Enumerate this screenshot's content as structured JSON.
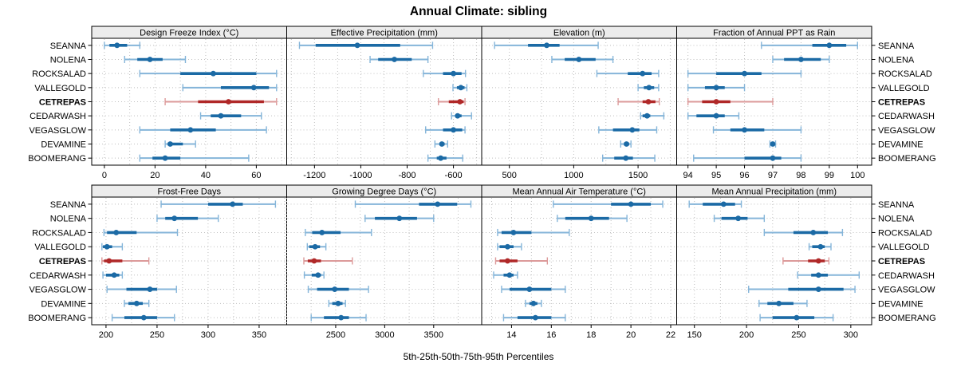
{
  "title": "Annual Climate: sibling",
  "caption": "5th-25th-50th-75th-95th Percentiles",
  "highlight_category": "CETREPAS",
  "colors": {
    "point_blue": "#1b6aa5",
    "band_blue": "#85b5d9",
    "point_red": "#b02828",
    "band_red": "#dc9a9a",
    "strip_bg": "#ececec",
    "grid": "#bfbfbf",
    "border": "#000000"
  },
  "chart_data": {
    "type": "dotplot-percentile-intervals",
    "percentiles_shown": [
      5,
      25,
      50,
      75,
      95
    ],
    "layout": "2 rows x 4 columns of panels, shared category axis",
    "categories": [
      "SEANNA",
      "NOLENA",
      "ROCKSALAD",
      "VALLEGOLD",
      "CETREPAS",
      "CEDARWASH",
      "VEGASGLOW",
      "DEVAMINE",
      "BOOMERANG"
    ],
    "panels": [
      {
        "title": "Design Freeze Index (°C)",
        "grid_row": 0,
        "grid_col": 0,
        "ticks": [
          0,
          20,
          40,
          60
        ],
        "xlim": [
          -5,
          72
        ],
        "values": [
          [
            0,
            2,
            5,
            9,
            14
          ],
          [
            8,
            13,
            18,
            23,
            32
          ],
          [
            14,
            30,
            43,
            60,
            68
          ],
          [
            31,
            46,
            59,
            65,
            68
          ],
          [
            24,
            37,
            49,
            63,
            68
          ],
          [
            38,
            42,
            46,
            54,
            62
          ],
          [
            14,
            26,
            34,
            44,
            64
          ],
          [
            24,
            25,
            26,
            31,
            36
          ],
          [
            14,
            19,
            24,
            30,
            57
          ]
        ]
      },
      {
        "title": "Effective Precipitation (mm)",
        "grid_row": 0,
        "grid_col": 1,
        "ticks": [
          -1200,
          -1000,
          -800,
          -600
        ],
        "xlim": [
          -1320,
          -478
        ],
        "values": [
          [
            -1265,
            -1195,
            -1015,
            -830,
            -690
          ],
          [
            -960,
            -925,
            -855,
            -780,
            -710
          ],
          [
            -730,
            -645,
            -600,
            -565,
            -548
          ],
          [
            -602,
            -585,
            -568,
            -552,
            -542
          ],
          [
            -665,
            -620,
            -572,
            -556,
            -550
          ],
          [
            -608,
            -592,
            -582,
            -565,
            -522
          ],
          [
            -720,
            -645,
            -600,
            -562,
            -550
          ],
          [
            -680,
            -660,
            -650,
            -638,
            -625
          ],
          [
            -710,
            -672,
            -655,
            -630,
            -560
          ]
        ]
      },
      {
        "title": "Elevation (m)",
        "grid_row": 0,
        "grid_col": 2,
        "ticks": [
          500,
          1000,
          1500
        ],
        "xlim": [
          285,
          1800
        ],
        "values": [
          [
            385,
            645,
            790,
            890,
            1190
          ],
          [
            830,
            930,
            1040,
            1170,
            1305
          ],
          [
            1180,
            1420,
            1535,
            1605,
            1660
          ],
          [
            1500,
            1545,
            1585,
            1625,
            1660
          ],
          [
            1345,
            1535,
            1580,
            1635,
            1665
          ],
          [
            1520,
            1535,
            1570,
            1595,
            1700
          ],
          [
            1195,
            1305,
            1455,
            1510,
            1645
          ],
          [
            1365,
            1390,
            1410,
            1430,
            1445
          ],
          [
            1225,
            1315,
            1405,
            1460,
            1630
          ]
        ]
      },
      {
        "title": "Fraction of Annual PPT as Rain",
        "grid_row": 0,
        "grid_col": 3,
        "ticks": [
          94,
          95,
          96,
          97,
          98,
          99,
          100
        ],
        "xlim": [
          93.6,
          100.5
        ],
        "values": [
          [
            96.6,
            98.4,
            99,
            99.6,
            100
          ],
          [
            97,
            97.4,
            98,
            98.7,
            99
          ],
          [
            94,
            95,
            96,
            96.6,
            98
          ],
          [
            94,
            94.6,
            95,
            95.3,
            96
          ],
          [
            94,
            94.5,
            95,
            95.5,
            97
          ],
          [
            94,
            94.3,
            95,
            95.3,
            95.8
          ],
          [
            94.9,
            95.5,
            96,
            96.7,
            98
          ],
          [
            96.9,
            96.95,
            97,
            97.05,
            97.1
          ],
          [
            94.2,
            96,
            97,
            97.3,
            98
          ]
        ]
      },
      {
        "title": "Frost-Free Days",
        "grid_row": 1,
        "grid_col": 0,
        "ticks": [
          200,
          250,
          300,
          350
        ],
        "xlim": [
          186,
          377
        ],
        "values": [
          [
            254,
            300,
            324,
            334,
            366
          ],
          [
            250,
            258,
            267,
            290,
            310
          ],
          [
            198,
            201,
            210,
            230,
            270
          ],
          [
            196,
            197,
            201,
            206,
            216
          ],
          [
            196,
            198,
            203,
            216,
            242
          ],
          [
            197,
            200,
            208,
            213,
            216
          ],
          [
            201,
            220,
            243,
            250,
            269
          ],
          [
            218,
            222,
            230,
            236,
            242
          ],
          [
            206,
            218,
            237,
            250,
            267
          ]
        ]
      },
      {
        "title": "Growing Degree Days (°C)",
        "grid_row": 1,
        "grid_col": 1,
        "ticks": [
          2500,
          3000,
          3500
        ],
        "xlim": [
          2000,
          3990
        ],
        "values": [
          [
            2700,
            3350,
            3540,
            3740,
            3880
          ],
          [
            2800,
            2900,
            3150,
            3330,
            3500
          ],
          [
            2190,
            2260,
            2360,
            2550,
            2865
          ],
          [
            2210,
            2230,
            2290,
            2340,
            2400
          ],
          [
            2175,
            2215,
            2280,
            2350,
            2670
          ],
          [
            2180,
            2255,
            2320,
            2350,
            2380
          ],
          [
            2220,
            2310,
            2490,
            2635,
            2835
          ],
          [
            2430,
            2465,
            2525,
            2570,
            2600
          ],
          [
            2250,
            2380,
            2555,
            2635,
            2810
          ]
        ]
      },
      {
        "title": "Mean Annual Air Temperature (°C)",
        "grid_row": 1,
        "grid_col": 2,
        "ticks": [
          14,
          16,
          18,
          20,
          22
        ],
        "xlim": [
          12.5,
          22.3
        ],
        "values": [
          [
            16.1,
            19,
            20,
            21,
            21.6
          ],
          [
            16.3,
            16.7,
            18,
            18.9,
            19.8
          ],
          [
            13.3,
            13.5,
            14.1,
            15,
            16.9
          ],
          [
            13.3,
            13.4,
            13.8,
            14.1,
            14.5
          ],
          [
            13.2,
            13.4,
            13.8,
            14.3,
            15.8
          ],
          [
            13.1,
            13.6,
            13.9,
            14.1,
            14.3
          ],
          [
            13.5,
            13.9,
            14.9,
            16,
            16.7
          ],
          [
            14.7,
            14.9,
            15.1,
            15.3,
            15.5
          ],
          [
            13.6,
            14.3,
            15.2,
            16,
            16.7
          ]
        ]
      },
      {
        "title": "Mean Annual Precipitation (mm)",
        "grid_row": 1,
        "grid_col": 3,
        "ticks": [
          150,
          200,
          250,
          300
        ],
        "xlim": [
          133,
          320
        ],
        "values": [
          [
            145,
            158,
            178,
            189,
            195
          ],
          [
            169,
            176,
            192,
            201,
            217
          ],
          [
            217,
            245,
            264,
            278,
            292
          ],
          [
            260,
            263,
            271,
            275,
            281
          ],
          [
            235,
            259,
            269,
            275,
            279
          ],
          [
            249,
            262,
            269,
            278,
            308
          ],
          [
            202,
            240,
            269,
            293,
            304
          ],
          [
            212,
            220,
            231,
            245,
            258
          ],
          [
            213,
            225,
            248,
            265,
            283
          ]
        ]
      }
    ]
  }
}
